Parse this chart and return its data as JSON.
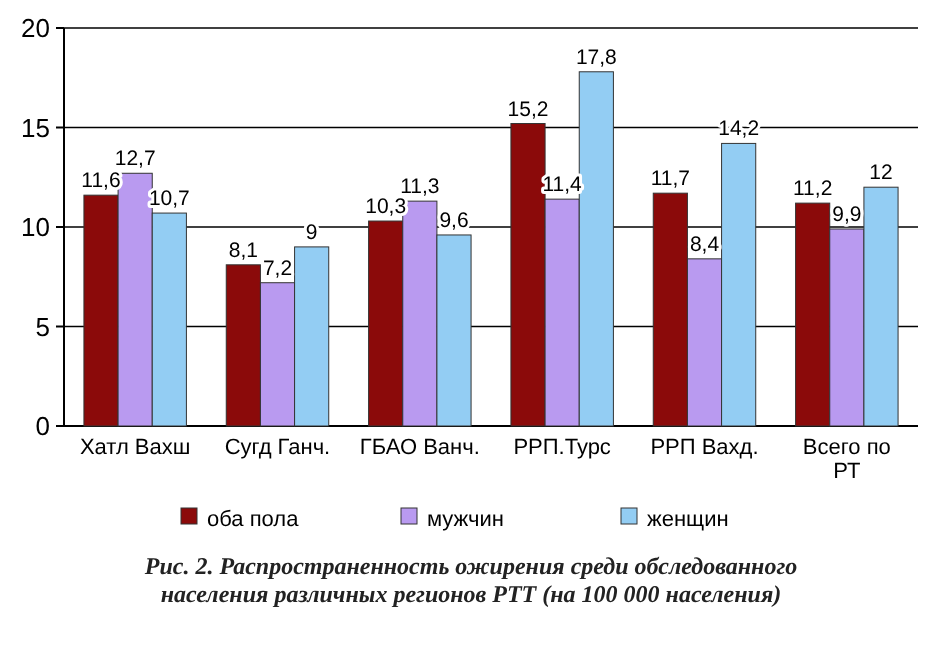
{
  "chart_data": {
    "type": "bar",
    "title": "Рис. 2. Распространенность ожирения среди  обследованного населения различных регионов РТТ (на 100 000 населения)",
    "categories": [
      "Хатл Вахш",
      "Сугд Ганч.",
      "ГБАО Ванч.",
      "РРП.Турс",
      "РРП Вахд.",
      "Всего по РТ"
    ],
    "series": [
      {
        "name": "оба пола",
        "color": "#8b0a0a",
        "values": [
          11.6,
          8.1,
          10.3,
          15.2,
          11.7,
          11.2
        ],
        "value_labels": [
          "11,6",
          "8,1",
          "10,3",
          "15,2",
          "11,7",
          "11,2"
        ]
      },
      {
        "name": "мужчин",
        "color": "#b99af0",
        "values": [
          12.7,
          7.2,
          11.3,
          11.4,
          8.4,
          9.9
        ],
        "value_labels": [
          "12,7",
          "7,2",
          "11,3",
          "11,4",
          "8,4",
          "9,9"
        ]
      },
      {
        "name": "женщин",
        "color": "#93cdf3",
        "values": [
          10.7,
          9,
          9.6,
          17.8,
          14.2,
          12
        ],
        "value_labels": [
          "10,7",
          "9",
          "9,6",
          "17,8",
          "14,2",
          "12"
        ]
      }
    ],
    "ylim": [
      0,
      20
    ],
    "yticks": [
      0,
      5,
      10,
      15,
      20
    ],
    "grid": "y",
    "legend": "bottom"
  }
}
